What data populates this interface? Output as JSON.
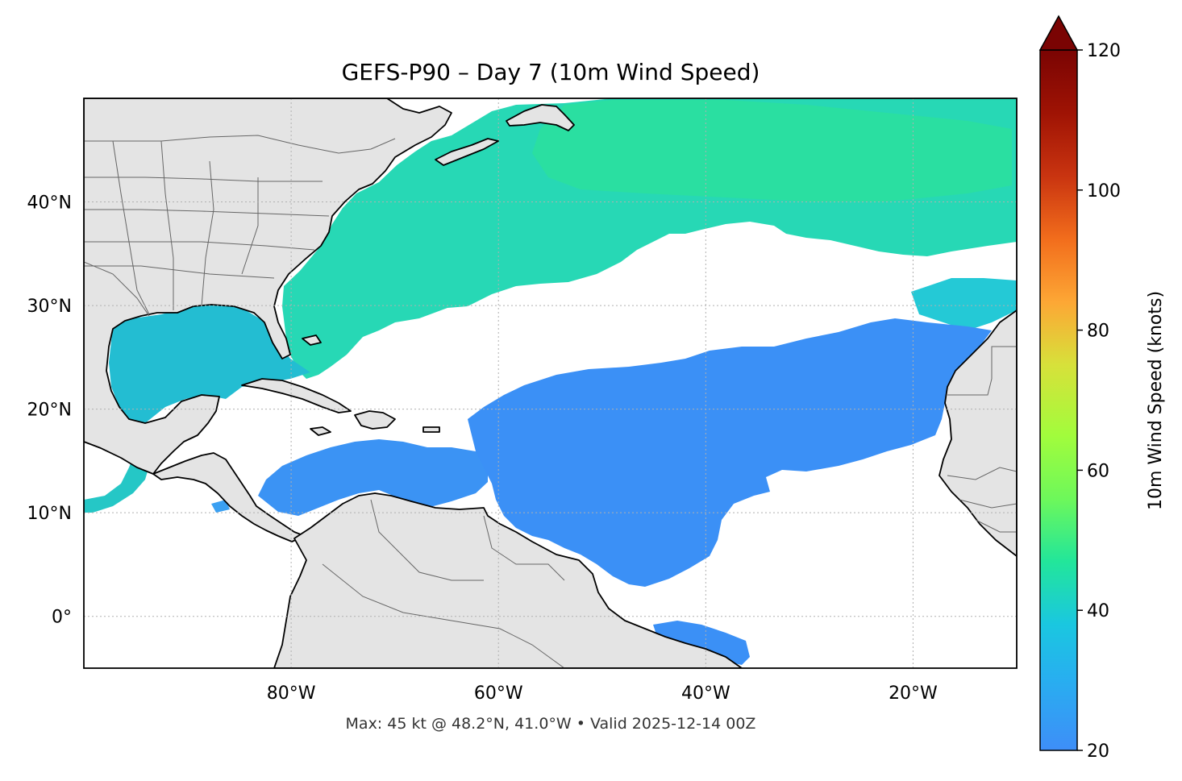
{
  "title": "GEFS-P90 – Day 7 (10m Wind Speed)",
  "footer": "Max: 45 kt @ 48.2°N, 41.0°W • Valid 2025-12-14 00Z",
  "map": {
    "lon_range": [
      -100,
      -10
    ],
    "lat_range": [
      -5,
      50
    ],
    "lon_ticks": [
      {
        "value": -80,
        "label": "80°W"
      },
      {
        "value": -60,
        "label": "60°W"
      },
      {
        "value": -40,
        "label": "40°W"
      },
      {
        "value": -20,
        "label": "20°W"
      }
    ],
    "lat_ticks": [
      {
        "value": 40,
        "label": "40°N"
      },
      {
        "value": 30,
        "label": "30°N"
      },
      {
        "value": 20,
        "label": "20°N"
      },
      {
        "value": 10,
        "label": "10°N"
      },
      {
        "value": 0,
        "label": "0°"
      }
    ],
    "land_color": "#e4e4e4",
    "ocean_color": "#ffffff",
    "gridlines": "dotted"
  },
  "colorbar": {
    "label": "10m Wind Speed (knots)",
    "range": [
      20,
      120
    ],
    "extend": "max",
    "ticks": [
      {
        "value": 20,
        "label": "20"
      },
      {
        "value": 40,
        "label": "40"
      },
      {
        "value": 60,
        "label": "60"
      },
      {
        "value": 80,
        "label": "80"
      },
      {
        "value": 100,
        "label": "100"
      },
      {
        "value": 120,
        "label": "120"
      }
    ],
    "colormap": "turbo",
    "colors": [
      "#3e8ef8",
      "#1ac7e0",
      "#22e69a",
      "#a2fc3c",
      "#d7e13a",
      "#fda735",
      "#f26d1c",
      "#c93410",
      "#9f1304",
      "#7a0403"
    ]
  },
  "max_wind": {
    "value": 45,
    "unit": "kt",
    "lat": 48.2,
    "lon": -41.0
  }
}
